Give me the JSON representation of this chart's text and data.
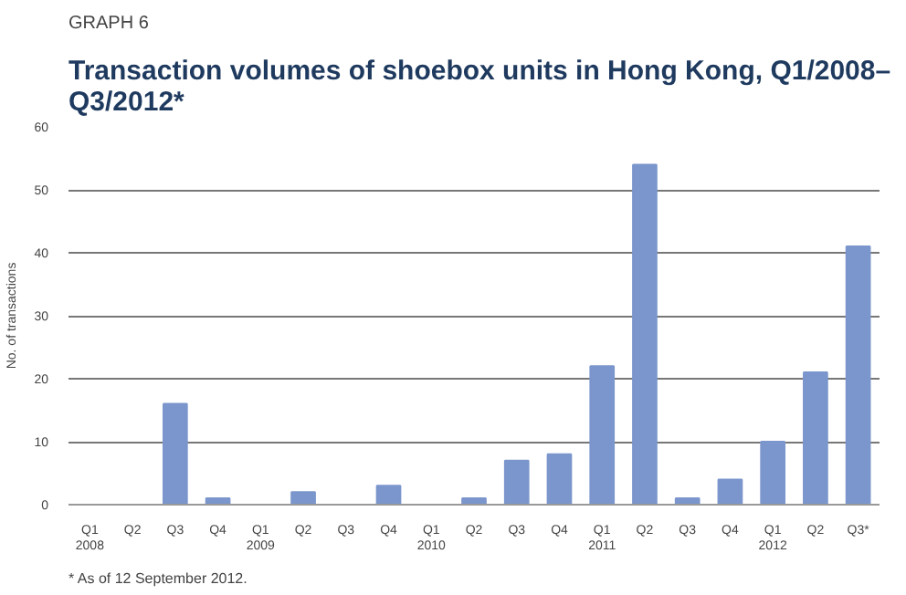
{
  "chart_data": {
    "type": "bar",
    "title": "Transaction volumes of shoebox units in Hong Kong, Q1/2008–\nQ3/2012*",
    "ylabel": "No. of transactions",
    "categories": [
      "Q1\n2008",
      "Q2",
      "Q3",
      "Q4",
      "Q1\n2009",
      "Q2",
      "Q3",
      "Q4",
      "Q1\n2010",
      "Q2",
      "Q3",
      "Q4",
      "Q1\n2011",
      "Q2",
      "Q3",
      "Q4",
      "Q1\n2012",
      "Q2",
      "Q3*"
    ],
    "values": [
      0,
      0,
      16,
      1,
      0,
      2,
      0,
      3,
      0,
      1,
      7,
      8,
      22,
      54,
      1,
      4,
      10,
      21,
      41
    ],
    "color": "#7b96cc",
    "ylim": [
      0,
      60
    ],
    "yticks": [
      0,
      10,
      20,
      30,
      40,
      50,
      60
    ],
    "grid": "y",
    "annotations": [
      "GRAPH 6",
      "* As of 12 September 2012."
    ]
  }
}
